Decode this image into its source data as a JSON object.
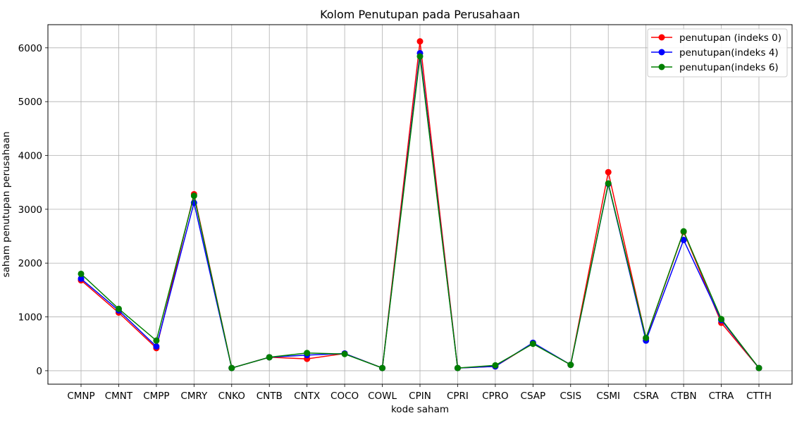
{
  "chart_data": {
    "type": "line",
    "title": "Kolom Penutupan pada Perusahaan",
    "xlabel": "kode saham",
    "ylabel": "saham penutupan perusahaan",
    "categories": [
      "CMNP",
      "CMNT",
      "CMPP",
      "CMRY",
      "CNKO",
      "CNTB",
      "CNTX",
      "COCO",
      "COWL",
      "CPIN",
      "CPRI",
      "CPRO",
      "CSAP",
      "CSIS",
      "CSMI",
      "CSRA",
      "CTBN",
      "CTRA",
      "CTTH"
    ],
    "ylim": [
      -250,
      6430
    ],
    "yticks": [
      0,
      1000,
      2000,
      3000,
      4000,
      5000,
      6000
    ],
    "grid": true,
    "legend_position": "upper right",
    "series": [
      {
        "name": "penutupan (indeks 0)",
        "color": "#ff0000",
        "values": [
          1680,
          1080,
          420,
          3280,
          50,
          250,
          220,
          320,
          50,
          6120,
          50,
          80,
          510,
          110,
          3690,
          600,
          2580,
          890,
          50
        ]
      },
      {
        "name": "penutupan(indeks 4)",
        "color": "#0000ff",
        "values": [
          1710,
          1120,
          450,
          3120,
          50,
          250,
          290,
          320,
          50,
          5900,
          50,
          80,
          520,
          110,
          3470,
          560,
          2430,
          940,
          50
        ]
      },
      {
        "name": "penutupan(indeks 6)",
        "color": "#008000",
        "values": [
          1800,
          1150,
          560,
          3250,
          50,
          250,
          330,
          310,
          50,
          5840,
          50,
          100,
          500,
          110,
          3480,
          610,
          2590,
          960,
          50
        ]
      }
    ]
  }
}
